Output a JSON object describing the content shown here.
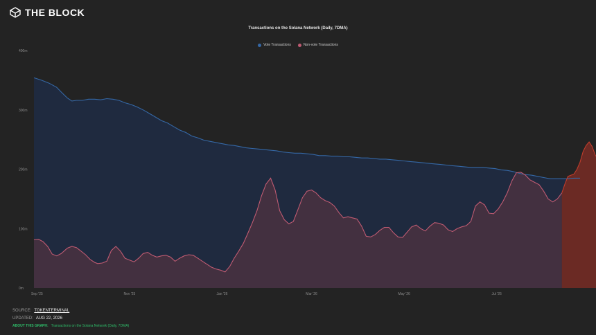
{
  "brand": {
    "name": "THE BLOCK"
  },
  "colors": {
    "background": "#232323",
    "vote": "#3568a6",
    "vote_fill": "#1f2a3f",
    "nonvote": "#c05b72",
    "nonvote_fill": "#463040",
    "nonvote_recent": "#c03d2c",
    "nonvote_recent_fill": "#6b2a24",
    "about": "#2fbf6a"
  },
  "chart_data": {
    "type": "area",
    "title": "Transactions on the Solana Network (Daily, 7DMA)",
    "ylim": [
      0,
      400000000
    ],
    "y_ticks": [
      {
        "value": 0,
        "label": "0m"
      },
      {
        "value": 100000000,
        "label": "100m"
      },
      {
        "value": 200000000,
        "label": "200m"
      },
      {
        "value": 300000000,
        "label": "300m"
      },
      {
        "value": 400000000,
        "label": "400m"
      }
    ],
    "x_ticks": [
      "Sep '25",
      "Nov '25",
      "Jan '26",
      "Mar '26",
      "May '26",
      "Jul '26"
    ],
    "x_tick_days": [
      2,
      63,
      124,
      183,
      244,
      305
    ],
    "last_day": 360,
    "grid": false,
    "legend_position": "top-center",
    "series": [
      {
        "name": "Vote Transactions",
        "color": "#3568a6",
        "points": [
          [
            0,
            354
          ],
          [
            5,
            350
          ],
          [
            10,
            345
          ],
          [
            15,
            338
          ],
          [
            18,
            330
          ],
          [
            22,
            320
          ],
          [
            25,
            315
          ],
          [
            28,
            316
          ],
          [
            32,
            316
          ],
          [
            36,
            318
          ],
          [
            40,
            318
          ],
          [
            44,
            317
          ],
          [
            48,
            319
          ],
          [
            52,
            318
          ],
          [
            56,
            316
          ],
          [
            60,
            312
          ],
          [
            64,
            309
          ],
          [
            68,
            305
          ],
          [
            72,
            300
          ],
          [
            76,
            294
          ],
          [
            80,
            288
          ],
          [
            84,
            282
          ],
          [
            88,
            278
          ],
          [
            92,
            272
          ],
          [
            96,
            266
          ],
          [
            100,
            262
          ],
          [
            104,
            256
          ],
          [
            108,
            253
          ],
          [
            112,
            249
          ],
          [
            116,
            247
          ],
          [
            120,
            245
          ],
          [
            124,
            243
          ],
          [
            128,
            241
          ],
          [
            132,
            240
          ],
          [
            136,
            238
          ],
          [
            140,
            236
          ],
          [
            144,
            235
          ],
          [
            148,
            234
          ],
          [
            152,
            233
          ],
          [
            156,
            232
          ],
          [
            160,
            231
          ],
          [
            164,
            229
          ],
          [
            168,
            228
          ],
          [
            172,
            227
          ],
          [
            176,
            227
          ],
          [
            180,
            226
          ],
          [
            184,
            225
          ],
          [
            188,
            223
          ],
          [
            192,
            223
          ],
          [
            196,
            222
          ],
          [
            200,
            222
          ],
          [
            204,
            221
          ],
          [
            208,
            221
          ],
          [
            212,
            220
          ],
          [
            216,
            219
          ],
          [
            220,
            219
          ],
          [
            224,
            218
          ],
          [
            228,
            217
          ],
          [
            232,
            217
          ],
          [
            236,
            216
          ],
          [
            240,
            215
          ],
          [
            244,
            214
          ],
          [
            248,
            213
          ],
          [
            252,
            212
          ],
          [
            256,
            211
          ],
          [
            260,
            210
          ],
          [
            264,
            209
          ],
          [
            268,
            208
          ],
          [
            272,
            207
          ],
          [
            276,
            206
          ],
          [
            280,
            205
          ],
          [
            284,
            204
          ],
          [
            288,
            203
          ],
          [
            292,
            203
          ],
          [
            296,
            203
          ],
          [
            300,
            202
          ],
          [
            304,
            201
          ],
          [
            308,
            199
          ],
          [
            312,
            198
          ],
          [
            316,
            196
          ],
          [
            320,
            193
          ],
          [
            324,
            191
          ],
          [
            328,
            190
          ],
          [
            332,
            188
          ],
          [
            336,
            186
          ],
          [
            340,
            184
          ],
          [
            344,
            184
          ],
          [
            348,
            184
          ],
          [
            352,
            184
          ],
          [
            356,
            185
          ],
          [
            360,
            185
          ]
        ]
      },
      {
        "name": "Non-vote Transactions",
        "color": "#c05b72",
        "points": [
          [
            0,
            81
          ],
          [
            3,
            82
          ],
          [
            6,
            78
          ],
          [
            9,
            70
          ],
          [
            12,
            57
          ],
          [
            15,
            54
          ],
          [
            18,
            58
          ],
          [
            22,
            67
          ],
          [
            25,
            70
          ],
          [
            28,
            68
          ],
          [
            31,
            62
          ],
          [
            34,
            56
          ],
          [
            37,
            48
          ],
          [
            40,
            43
          ],
          [
            42,
            41
          ],
          [
            45,
            42
          ],
          [
            48,
            45
          ],
          [
            51,
            63
          ],
          [
            54,
            70
          ],
          [
            57,
            62
          ],
          [
            60,
            50
          ],
          [
            63,
            47
          ],
          [
            66,
            44
          ],
          [
            69,
            50
          ],
          [
            72,
            58
          ],
          [
            75,
            60
          ],
          [
            78,
            55
          ],
          [
            81,
            52
          ],
          [
            84,
            54
          ],
          [
            87,
            55
          ],
          [
            90,
            52
          ],
          [
            93,
            45
          ],
          [
            96,
            50
          ],
          [
            99,
            54
          ],
          [
            102,
            56
          ],
          [
            105,
            55
          ],
          [
            108,
            50
          ],
          [
            111,
            45
          ],
          [
            114,
            40
          ],
          [
            117,
            35
          ],
          [
            120,
            32
          ],
          [
            123,
            30
          ],
          [
            126,
            27
          ],
          [
            129,
            36
          ],
          [
            132,
            50
          ],
          [
            135,
            62
          ],
          [
            138,
            75
          ],
          [
            141,
            92
          ],
          [
            144,
            110
          ],
          [
            147,
            130
          ],
          [
            150,
            155
          ],
          [
            153,
            175
          ],
          [
            156,
            185
          ],
          [
            159,
            165
          ],
          [
            162,
            130
          ],
          [
            165,
            115
          ],
          [
            168,
            108
          ],
          [
            171,
            112
          ],
          [
            174,
            132
          ],
          [
            177,
            152
          ],
          [
            180,
            163
          ],
          [
            183,
            165
          ],
          [
            186,
            160
          ],
          [
            189,
            152
          ],
          [
            192,
            147
          ],
          [
            195,
            144
          ],
          [
            198,
            138
          ],
          [
            201,
            127
          ],
          [
            204,
            118
          ],
          [
            207,
            120
          ],
          [
            210,
            118
          ],
          [
            213,
            116
          ],
          [
            216,
            104
          ],
          [
            219,
            87
          ],
          [
            222,
            86
          ],
          [
            225,
            90
          ],
          [
            228,
            97
          ],
          [
            231,
            102
          ],
          [
            234,
            102
          ],
          [
            237,
            93
          ],
          [
            240,
            86
          ],
          [
            243,
            85
          ],
          [
            246,
            94
          ],
          [
            249,
            103
          ],
          [
            252,
            106
          ],
          [
            255,
            100
          ],
          [
            258,
            96
          ],
          [
            261,
            104
          ],
          [
            264,
            110
          ],
          [
            267,
            109
          ],
          [
            270,
            106
          ],
          [
            273,
            98
          ],
          [
            276,
            95
          ],
          [
            279,
            100
          ],
          [
            282,
            103
          ],
          [
            285,
            105
          ],
          [
            288,
            112
          ],
          [
            291,
            138
          ],
          [
            294,
            145
          ],
          [
            297,
            140
          ],
          [
            300,
            126
          ],
          [
            303,
            125
          ],
          [
            306,
            133
          ],
          [
            309,
            145
          ],
          [
            312,
            160
          ],
          [
            315,
            180
          ],
          [
            318,
            194
          ],
          [
            321,
            195
          ],
          [
            324,
            190
          ],
          [
            327,
            182
          ],
          [
            330,
            178
          ],
          [
            333,
            174
          ],
          [
            336,
            163
          ],
          [
            339,
            150
          ],
          [
            342,
            145
          ],
          [
            345,
            150
          ],
          [
            348,
            160
          ]
        ]
      },
      {
        "name": "Non-vote Transactions (recent)",
        "color": "#c03d2c",
        "points": [
          [
            348,
            160
          ],
          [
            350,
            175
          ],
          [
            352,
            188
          ],
          [
            354,
            190
          ],
          [
            356,
            192
          ],
          [
            358,
            200
          ],
          [
            360,
            212
          ],
          [
            362,
            230
          ],
          [
            364,
            240
          ],
          [
            366,
            246
          ],
          [
            368,
            238
          ],
          [
            370,
            224
          ],
          [
            372,
            216
          ],
          [
            374,
            225
          ],
          [
            376,
            245
          ],
          [
            377,
            246
          ]
        ]
      }
    ]
  },
  "legend": {
    "items": [
      {
        "label": "Vote Transactions",
        "color": "#3568a6"
      },
      {
        "label": "Non-vote Transactions",
        "color": "#c05b72"
      }
    ]
  },
  "footer": {
    "source_label": "SOURCE:",
    "source_value": "TOKENTERMINAL",
    "updated_label": "UPDATED:",
    "updated_value": "AUG 22, 2026",
    "about_label": "ABOUT THIS GRAPH:",
    "about_value": "Transactions on the Solana Network (Daily, 7DMA)"
  }
}
